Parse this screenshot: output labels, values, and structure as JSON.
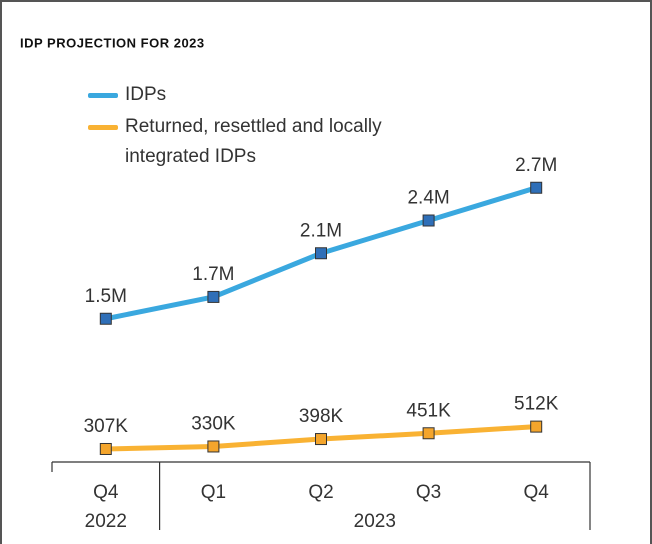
{
  "chart_data": {
    "type": "line",
    "title": "IDP PROJECTION FOR 2023",
    "categories": [
      "Q4",
      "Q1",
      "Q2",
      "Q3",
      "Q4"
    ],
    "category_groups": [
      {
        "label": "2022",
        "count": 1
      },
      {
        "label": "2023",
        "count": 4
      }
    ],
    "series": [
      {
        "name": "IDPs",
        "color": "#3aa8df",
        "marker_color": "#2f6fb8",
        "values": [
          1500000,
          1700000,
          2100000,
          2400000,
          2700000
        ],
        "value_labels": [
          "1.5M",
          "1.7M",
          "2.1M",
          "2.4M",
          "2.7M"
        ]
      },
      {
        "name": "Returned, resettled and locally integrated IDPs",
        "color": "#f9b233",
        "marker_color": "#f4a52c",
        "values": [
          307000,
          330000,
          398000,
          451000,
          512000
        ],
        "value_labels": [
          "307K",
          "330K",
          "398K",
          "451K",
          "512K"
        ]
      }
    ],
    "ylim": [
      0,
      3000000
    ]
  }
}
